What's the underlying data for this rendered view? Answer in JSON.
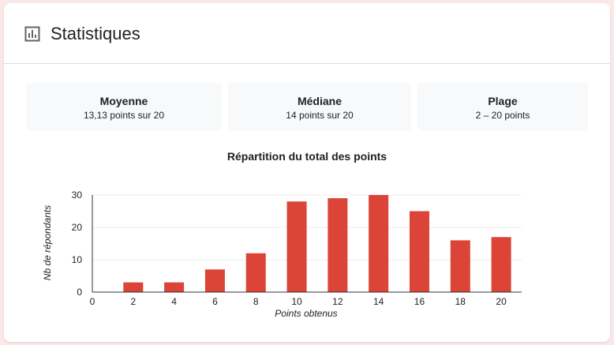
{
  "header": {
    "title": "Statistiques",
    "icon": "bar-chart-icon"
  },
  "stats": [
    {
      "label": "Moyenne",
      "value": "13,13 points sur 20"
    },
    {
      "label": "Médiane",
      "value": "14 points sur 20"
    },
    {
      "label": "Plage",
      "value": "2 – 20 points"
    }
  ],
  "chart_data": {
    "type": "bar",
    "title": "Répartition du total des points",
    "xlabel": "Points obtenus",
    "ylabel": "Nb de répondants",
    "x": [
      2,
      4,
      6,
      8,
      10,
      12,
      14,
      16,
      18,
      20
    ],
    "values": [
      3,
      3,
      7,
      12,
      28,
      29,
      30,
      25,
      16,
      17
    ],
    "xticks": [
      0,
      2,
      4,
      6,
      8,
      10,
      12,
      14,
      16,
      18,
      20
    ],
    "yticks": [
      0,
      10,
      20,
      30
    ],
    "xlim": [
      0,
      21
    ],
    "ylim": [
      0,
      30
    ],
    "grid": true,
    "bar_color": "#db4437"
  }
}
